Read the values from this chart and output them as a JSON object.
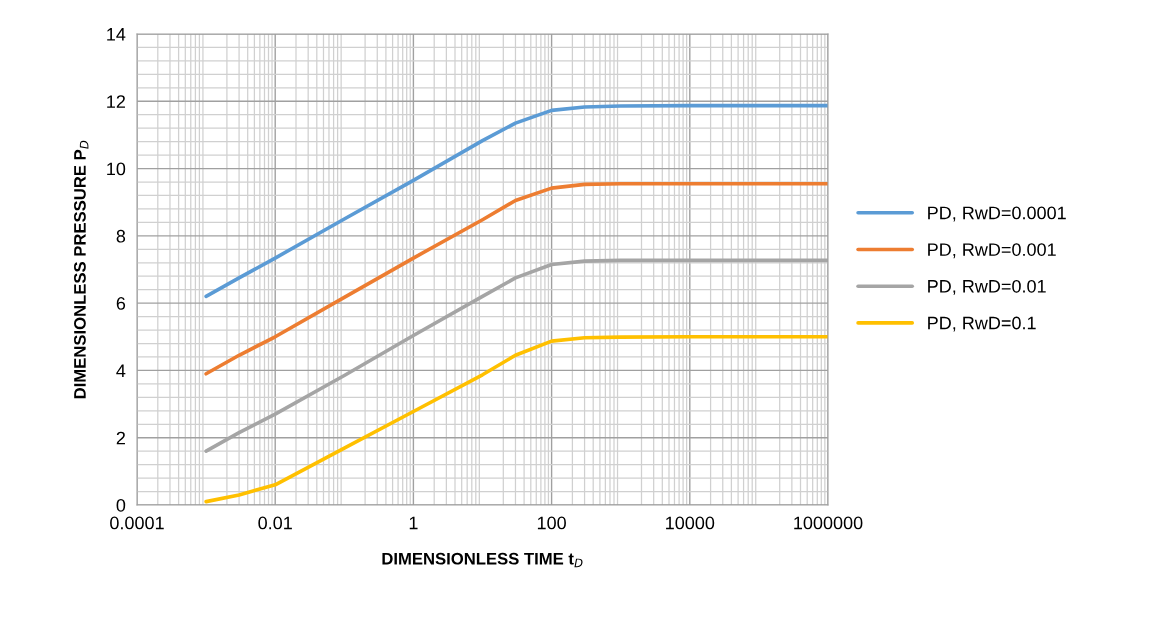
{
  "chart_data": {
    "type": "line",
    "xlabel": "DIMENSIONLESS TIME t$_{D}$",
    "ylabel": "DIMENSIONLESS PRESSURE P$_{D}$",
    "log": "x",
    "xlim": [
      0.0001,
      1000000
    ],
    "xticks": [
      0.0001,
      0.01,
      1,
      100,
      10000,
      1000000
    ],
    "ylim": [
      0,
      14
    ],
    "yticks": [
      0,
      2,
      4,
      6,
      8,
      10,
      12,
      14
    ],
    "grid": true,
    "legend": "right",
    "marker": "none",
    "line_style": "solid",
    "x": [
      0.001,
      0.003,
      0.01,
      0.1,
      1,
      10,
      30,
      100,
      300,
      1000,
      10000,
      100000,
      1000000
    ],
    "series": [
      {
        "name": "PD, RwD=0.0001",
        "color": "#5b9bd5",
        "values": [
          6.2,
          6.75,
          7.34,
          8.5,
          9.65,
          10.83,
          11.35,
          11.73,
          11.83,
          11.86,
          11.87,
          11.87,
          11.87
        ]
      },
      {
        "name": "PD, RwD=0.001",
        "color": "#ed7d31",
        "values": [
          3.9,
          4.45,
          5.0,
          6.17,
          7.34,
          8.48,
          9.05,
          9.42,
          9.53,
          9.55,
          9.55,
          9.55,
          9.55
        ]
      },
      {
        "name": "PD, RwD=0.01",
        "color": "#a5a5a5",
        "values": [
          1.6,
          2.15,
          2.7,
          3.85,
          5.04,
          6.2,
          6.75,
          7.15,
          7.25,
          7.27,
          7.27,
          7.27,
          7.27
        ]
      },
      {
        "name": "PD, RwD=0.1",
        "color": "#ffc000",
        "values": [
          0.1,
          0.3,
          0.6,
          1.69,
          2.78,
          3.87,
          4.45,
          4.87,
          4.97,
          4.99,
          5.0,
          5.0,
          5.0
        ]
      }
    ]
  }
}
